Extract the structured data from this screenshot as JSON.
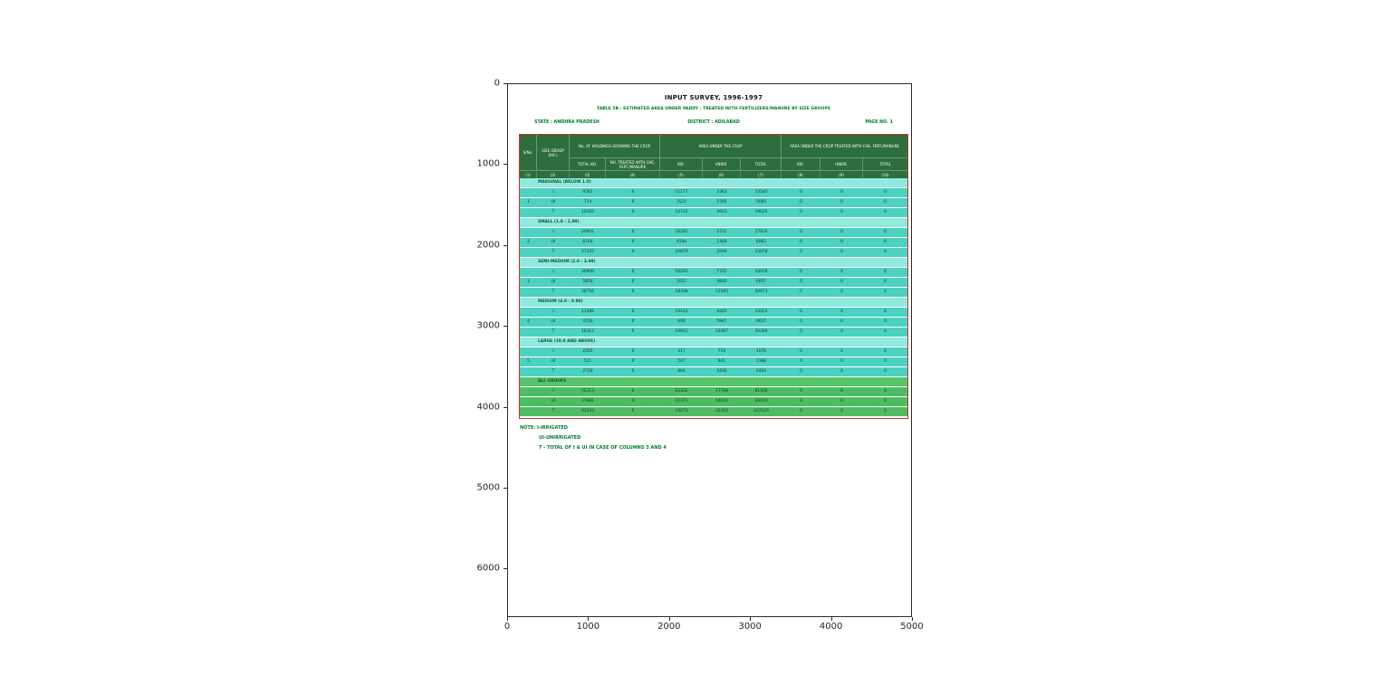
{
  "colors": {
    "header_green": "#2c6e3c",
    "row_teal": "#4cd2c0",
    "row_pale_teal": "#8feadd",
    "row_green": "#4cbd62",
    "table_border_red": "#cf2e26",
    "green_text": "#007d2c"
  },
  "figure": {
    "x_ticks": [
      "0",
      "1000",
      "2000",
      "3000",
      "4000",
      "5000"
    ],
    "y_ticks": [
      "0",
      "1000",
      "2000",
      "3000",
      "4000",
      "5000",
      "6000"
    ]
  },
  "document": {
    "title": "INPUT SURVEY, 1996-1997",
    "subtitle": "TABLE 5B : ESTIMATED AREA UNDER PADDY : TREATED WITH FERTILIZERS/MANURE BY SIZE GROUPS",
    "state": "STATE : ANDHRA PRADESH",
    "district": "DISTRICT : ADILABAD",
    "page": "PAGE NO. 1",
    "notes": [
      "NOTE: I-IRRIGATED",
      "UI-UNIRRIGATED",
      "T - TOTAL OF I & UI IN CASE OF COLUMNS 3 AND 4"
    ]
  },
  "table": {
    "header": {
      "sno": "S/No.",
      "size_group": "SIZE GROUP (HA.)",
      "holdings": "No. OF HOLDINGS GROWING THE CROP",
      "total_no": "TOTAL NO.",
      "treated_no": "NO. TREATED WITH CHE. FERT./MANURE",
      "area": "AREA UNDER THE CROP",
      "area_treated": "AREA UNDER THE CROP TREATED WITH CHE. FERT./MANURE",
      "irr": "IRR.",
      "unirr": "UNIRR.",
      "total": "TOTAL"
    },
    "col_numbers": [
      "(1)",
      "(2)",
      "(3)",
      "(4)",
      "(5)",
      "(6)",
      "(7)",
      "(8)",
      "(9)",
      "(10)"
    ],
    "groups": [
      {
        "sno": "1",
        "label": "MARGINAL (BELOW 1.0)",
        "color": "teal",
        "rows": [
          {
            "type": "I",
            "values": [
              9581,
              0,
              11177,
              3363,
              14540,
              0,
              0,
              0
            ]
          },
          {
            "type": "UI",
            "values": [
              714,
              0,
              3525,
              1560,
              5085,
              0,
              0,
              0
            ]
          },
          {
            "type": "T",
            "values": [
              10295,
              0,
              14702,
              4923,
              19625,
              0,
              0,
              0
            ]
          }
        ]
      },
      {
        "sno": "2",
        "label": "SMALL (1.0 - 1.99)",
        "color": "teal",
        "rows": [
          {
            "type": "I",
            "values": [
              20941,
              0,
              16285,
              1531,
              17816,
              0,
              0,
              0
            ]
          },
          {
            "type": "UI",
            "values": [
              6164,
              0,
              4594,
              1468,
              6062,
              0,
              0,
              0
            ]
          },
          {
            "type": "T",
            "values": [
              27105,
              0,
              20879,
              2999,
              23878,
              0,
              0,
              0
            ]
          }
        ]
      },
      {
        "sno": "3",
        "label": "SEMI-MEDIUM (2.0 - 3.99)",
        "color": "teal",
        "rows": [
          {
            "type": "I",
            "values": [
              30900,
              0,
              16291,
              7725,
              24016,
              0,
              0,
              0
            ]
          },
          {
            "type": "UI",
            "values": [
              5856,
              0,
              2017,
              4840,
              6857,
              0,
              0,
              0
            ]
          },
          {
            "type": "T",
            "values": [
              36756,
              0,
              18308,
              12565,
              30873,
              0,
              0,
              0
            ]
          }
        ]
      },
      {
        "sno": "4",
        "label": "MEDIUM (4.0 - 9.99)",
        "color": "teal",
        "rows": [
          {
            "type": "I",
            "values": [
              11586,
              0,
              19232,
              4420,
              23652,
              0,
              0,
              0
            ]
          },
          {
            "type": "UI",
            "values": [
              4726,
              0,
              690,
              5947,
              6637,
              0,
              0,
              0
            ]
          },
          {
            "type": "T",
            "values": [
              16312,
              0,
              19922,
              10367,
              30289,
              0,
              0,
              0
            ]
          }
        ]
      },
      {
        "sno": "5",
        "label": "LARGE (10.0 AND ABOVE)",
        "color": "teal",
        "rows": [
          {
            "type": "I",
            "values": [
              2205,
              0,
              317,
              759,
              1076,
              0,
              0,
              0
            ]
          },
          {
            "type": "UI",
            "values": [
              521,
              0,
              547,
              841,
              1388,
              0,
              0,
              0
            ]
          },
          {
            "type": "T",
            "values": [
              2726,
              0,
              864,
              1600,
              2464,
              0,
              0,
              0
            ]
          }
        ]
      },
      {
        "sno": "",
        "label": "ALL GROUPS",
        "color": "green",
        "rows": [
          {
            "type": "I",
            "values": [
              75213,
              0,
              63302,
              17798,
              81100,
              0,
              0,
              0
            ]
          },
          {
            "type": "UI",
            "values": [
              17981,
              0,
              11373,
              14656,
              26029,
              0,
              0,
              0
            ]
          },
          {
            "type": "T",
            "values": [
              93194,
              0,
              74675,
              32454,
              107129,
              0,
              0,
              0
            ]
          }
        ]
      }
    ]
  },
  "chart_data": {
    "type": "table",
    "title": "INPUT SURVEY, 1996-1997",
    "subtitle": "TABLE 5B : ESTIMATED AREA UNDER PADDY : TREATED WITH FERTILIZERS/MANURE BY SIZE GROUPS",
    "state": "ANDHRA PRADESH",
    "district": "ADILABAD",
    "page": "PAGE NO. 1",
    "axes": {
      "x_range": [
        0,
        5000
      ],
      "y_range": [
        6600,
        0
      ],
      "x_ticks": [
        0,
        1000,
        2000,
        3000,
        4000,
        5000
      ],
      "y_ticks": [
        0,
        1000,
        2000,
        3000,
        4000,
        5000,
        6000
      ]
    },
    "columns": [
      "S/No.",
      "SIZE GROUP (HA.)",
      "I/UI/T",
      "TOTAL NO. OF HOLDINGS",
      "NO. TREATED WITH CHE. FERT./MANURE",
      "AREA IRR.",
      "AREA UNIRR.",
      "AREA TOTAL",
      "TREATED AREA IRR.",
      "TREATED AREA UNIRR.",
      "TREATED AREA TOTAL"
    ],
    "rows": [
      [
        "1",
        "MARGINAL (BELOW 1.0)",
        "I",
        9581,
        0,
        11177,
        3363,
        14540,
        0,
        0,
        0
      ],
      [
        "1",
        "MARGINAL (BELOW 1.0)",
        "UI",
        714,
        0,
        3525,
        1560,
        5085,
        0,
        0,
        0
      ],
      [
        "1",
        "MARGINAL (BELOW 1.0)",
        "T",
        10295,
        0,
        14702,
        4923,
        19625,
        0,
        0,
        0
      ],
      [
        "2",
        "SMALL (1.0 - 1.99)",
        "I",
        20941,
        0,
        16285,
        1531,
        17816,
        0,
        0,
        0
      ],
      [
        "2",
        "SMALL (1.0 - 1.99)",
        "UI",
        6164,
        0,
        4594,
        1468,
        6062,
        0,
        0,
        0
      ],
      [
        "2",
        "SMALL (1.0 - 1.99)",
        "T",
        27105,
        0,
        20879,
        2999,
        23878,
        0,
        0,
        0
      ],
      [
        "3",
        "SEMI-MEDIUM (2.0 - 3.99)",
        "I",
        30900,
        0,
        16291,
        7725,
        24016,
        0,
        0,
        0
      ],
      [
        "3",
        "SEMI-MEDIUM (2.0 - 3.99)",
        "UI",
        5856,
        0,
        2017,
        4840,
        6857,
        0,
        0,
        0
      ],
      [
        "3",
        "SEMI-MEDIUM (2.0 - 3.99)",
        "T",
        36756,
        0,
        18308,
        12565,
        30873,
        0,
        0,
        0
      ],
      [
        "4",
        "MEDIUM (4.0 - 9.99)",
        "I",
        11586,
        0,
        19232,
        4420,
        23652,
        0,
        0,
        0
      ],
      [
        "4",
        "MEDIUM (4.0 - 9.99)",
        "UI",
        4726,
        0,
        690,
        5947,
        6637,
        0,
        0,
        0
      ],
      [
        "4",
        "MEDIUM (4.0 - 9.99)",
        "T",
        16312,
        0,
        19922,
        10367,
        30289,
        0,
        0,
        0
      ],
      [
        "5",
        "LARGE (10.0 AND ABOVE)",
        "I",
        2205,
        0,
        317,
        759,
        1076,
        0,
        0,
        0
      ],
      [
        "5",
        "LARGE (10.0 AND ABOVE)",
        "UI",
        521,
        0,
        547,
        841,
        1388,
        0,
        0,
        0
      ],
      [
        "5",
        "LARGE (10.0 AND ABOVE)",
        "T",
        2726,
        0,
        864,
        1600,
        2464,
        0,
        0,
        0
      ],
      [
        "",
        "ALL GROUPS",
        "I",
        75213,
        0,
        63302,
        17798,
        81100,
        0,
        0,
        0
      ],
      [
        "",
        "ALL GROUPS",
        "UI",
        17981,
        0,
        11373,
        14656,
        26029,
        0,
        0,
        0
      ],
      [
        "",
        "ALL GROUPS",
        "T",
        93194,
        0,
        74675,
        32454,
        107129,
        0,
        0,
        0
      ]
    ],
    "notes": [
      "NOTE: I-IRRIGATED",
      "UI-UNIRRIGATED",
      "T - TOTAL OF I & UI IN CASE OF COLUMNS 3 AND 4"
    ]
  }
}
